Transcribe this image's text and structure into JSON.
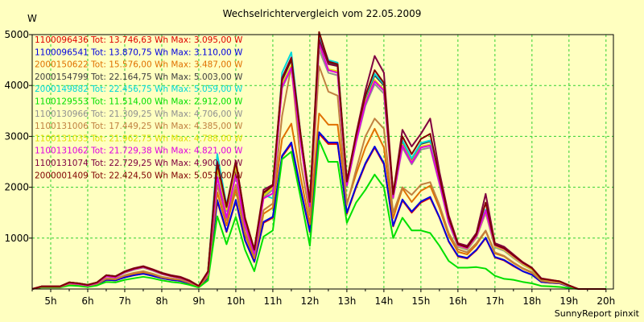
{
  "chart_data": {
    "type": "line",
    "title": "Wechselrichtervergleich vom 22.05.2009",
    "ylabel": "W",
    "credit": "SunnyReport pinxit",
    "x_labels": [
      "5h",
      "6h",
      "7h",
      "8h",
      "9h",
      "10h",
      "11h",
      "12h",
      "13h",
      "14h",
      "15h",
      "16h",
      "17h",
      "18h",
      "19h",
      "20h"
    ],
    "x_start": 4.5,
    "x_end": 20.2,
    "ylim": [
      0,
      5000
    ],
    "y_ticks": [
      1000,
      2000,
      3000,
      4000,
      5000
    ],
    "grid": true,
    "legend_position": "top-left",
    "x": [
      4.5,
      4.75,
      5.0,
      5.25,
      5.5,
      5.75,
      6.0,
      6.25,
      6.5,
      6.75,
      7.0,
      7.25,
      7.5,
      7.75,
      8.0,
      8.25,
      8.5,
      8.75,
      9.0,
      9.25,
      9.5,
      9.75,
      10.0,
      10.25,
      10.5,
      10.75,
      11.0,
      11.25,
      11.5,
      11.75,
      12.0,
      12.25,
      12.5,
      12.75,
      13.0,
      13.25,
      13.5,
      13.75,
      14.0,
      14.25,
      14.5,
      14.75,
      15.0,
      15.25,
      15.5,
      15.75,
      16.0,
      16.25,
      16.5,
      16.75,
      17.0,
      17.25,
      17.5,
      17.75,
      18.0,
      18.25,
      18.5,
      18.75,
      19.0,
      19.25,
      19.5,
      19.75,
      20.0
    ],
    "series": [
      {
        "name": "1100096436 Tot: 13.746,63 Wh Max: 3.095,00 W",
        "color": "#e00000",
        "values": [
          0,
          40,
          40,
          40,
          90,
          80,
          60,
          90,
          180,
          170,
          230,
          270,
          300,
          260,
          210,
          180,
          160,
          110,
          40,
          220,
          1720,
          1120,
          1730,
          950,
          530,
          1300,
          1400,
          2600,
          2850,
          1950,
          1120,
          3050,
          2850,
          2850,
          1480,
          2000,
          2450,
          2780,
          2450,
          1230,
          1740,
          1500,
          1700,
          1790,
          1400,
          930,
          640,
          600,
          760,
          1000,
          620,
          560,
          450,
          350,
          280,
          140,
          120,
          110,
          50,
          0,
          0,
          0,
          0
        ]
      },
      {
        "name": "1100096541 Tot: 13.870,75 Wh Max: 3.110,00 W",
        "color": "#0000e0",
        "values": [
          0,
          40,
          40,
          40,
          90,
          80,
          60,
          90,
          180,
          170,
          230,
          270,
          300,
          260,
          210,
          180,
          160,
          110,
          40,
          220,
          1750,
          1130,
          1750,
          960,
          540,
          1320,
          1420,
          2620,
          2880,
          1970,
          1130,
          3080,
          2880,
          2880,
          1500,
          2020,
          2470,
          2800,
          2470,
          1240,
          1760,
          1520,
          1720,
          1810,
          1410,
          940,
          650,
          610,
          770,
          1010,
          630,
          570,
          460,
          350,
          280,
          140,
          120,
          110,
          50,
          0,
          0,
          0,
          0
        ]
      },
      {
        "name": "2000150622 Tot: 15.576,00 Wh Max: 3.487,00 W",
        "color": "#e07000",
        "values": [
          0,
          40,
          40,
          40,
          100,
          90,
          60,
          100,
          200,
          190,
          260,
          300,
          330,
          290,
          230,
          200,
          180,
          120,
          40,
          250,
          1900,
          1250,
          1950,
          1070,
          600,
          1480,
          1600,
          2950,
          3250,
          2200,
          1270,
          3450,
          3230,
          3230,
          1680,
          2260,
          2780,
          3150,
          2780,
          1390,
          1980,
          1710,
          1930,
          2030,
          1590,
          1050,
          730,
          680,
          870,
          1140,
          700,
          640,
          510,
          400,
          320,
          160,
          130,
          120,
          60,
          0,
          0,
          0,
          0
        ]
      },
      {
        "name": "2000154799 Tot: 22.164,75 Wh Max: 5.003,00 W",
        "color": "#404040",
        "values": [
          0,
          50,
          50,
          50,
          130,
          110,
          80,
          130,
          270,
          250,
          340,
          400,
          440,
          380,
          310,
          260,
          230,
          160,
          60,
          340,
          2450,
          1600,
          2480,
          1370,
          760,
          1880,
          2030,
          4100,
          4500,
          3000,
          1700,
          4950,
          4450,
          4400,
          2100,
          3000,
          3750,
          4200,
          4000,
          1850,
          2900,
          2550,
          2850,
          2900,
          2150,
          1350,
          860,
          800,
          1050,
          1550,
          850,
          780,
          640,
          500,
          400,
          200,
          170,
          150,
          70,
          0,
          0,
          0,
          0
        ]
      },
      {
        "name": "2000149882 Tot: 22.456,75 Wh Max: 5.059,00 W",
        "color": "#00d8d8",
        "values": [
          0,
          50,
          50,
          50,
          130,
          110,
          80,
          130,
          270,
          250,
          340,
          400,
          440,
          380,
          310,
          260,
          230,
          160,
          60,
          340,
          2650,
          1650,
          2500,
          1380,
          760,
          1850,
          1780,
          4250,
          4650,
          3050,
          1730,
          5000,
          4500,
          4450,
          2120,
          3030,
          3780,
          4230,
          4030,
          1870,
          2920,
          2570,
          2870,
          2920,
          2170,
          1360,
          870,
          810,
          1060,
          1560,
          860,
          790,
          650,
          510,
          410,
          210,
          170,
          150,
          70,
          0,
          0,
          0,
          0
        ]
      },
      {
        "name": "1100129553 Tot: 11.514,00 Wh Max: 2.912,00 W",
        "color": "#00e000",
        "values": [
          0,
          30,
          30,
          30,
          70,
          60,
          40,
          70,
          140,
          130,
          180,
          210,
          240,
          210,
          170,
          140,
          120,
          80,
          30,
          170,
          1430,
          880,
          1420,
          770,
          350,
          1030,
          1150,
          2550,
          2700,
          1800,
          850,
          2920,
          2500,
          2500,
          1300,
          1700,
          1950,
          2250,
          2000,
          1000,
          1400,
          1150,
          1150,
          1100,
          850,
          550,
          420,
          420,
          430,
          400,
          260,
          200,
          180,
          140,
          110,
          60,
          50,
          40,
          20,
          0,
          0,
          0,
          0
        ]
      },
      {
        "name": "1100130966 Tot: 21.309,25 Wh Max: 4.706,00 W",
        "color": "#909090",
        "values": [
          0,
          50,
          50,
          50,
          120,
          100,
          70,
          120,
          250,
          230,
          320,
          380,
          420,
          360,
          290,
          250,
          220,
          150,
          60,
          320,
          2350,
          1530,
          2380,
          1320,
          720,
          1800,
          1950,
          3950,
          4330,
          2900,
          1640,
          4700,
          4250,
          4200,
          2020,
          2880,
          3600,
          4030,
          3840,
          1780,
          2780,
          2450,
          2740,
          2780,
          2060,
          1300,
          830,
          770,
          1010,
          1490,
          820,
          750,
          610,
          480,
          380,
          190,
          160,
          140,
          70,
          0,
          0,
          0,
          0
        ]
      },
      {
        "name": "1100131006 Tot: 17.449,25 Wh Max: 4.385,00 W",
        "color": "#c08040",
        "values": [
          0,
          40,
          40,
          40,
          100,
          90,
          60,
          100,
          210,
          200,
          270,
          320,
          350,
          300,
          240,
          210,
          190,
          130,
          50,
          270,
          2050,
          1350,
          2050,
          1130,
          650,
          1550,
          1680,
          3400,
          4380,
          2500,
          1450,
          4380,
          3880,
          3800,
          1650,
          2350,
          3000,
          3350,
          3150,
          1500,
          2000,
          1850,
          2050,
          2100,
          1650,
          1100,
          780,
          720,
          900,
          1150,
          720,
          650,
          520,
          410,
          330,
          170,
          140,
          120,
          60,
          0,
          0,
          0,
          0
        ]
      },
      {
        "name": "1100131035 Tot: 21.962,75 Wh Max: 4.788,00 W",
        "color": "#e0e000",
        "values": [
          0,
          50,
          50,
          50,
          130,
          110,
          80,
          130,
          260,
          240,
          330,
          390,
          430,
          370,
          300,
          255,
          225,
          155,
          60,
          330,
          2400,
          1560,
          2430,
          1350,
          740,
          1840,
          1990,
          4020,
          4400,
          2950,
          1670,
          4790,
          4320,
          4280,
          2060,
          2940,
          3680,
          4110,
          3920,
          1810,
          2840,
          2500,
          2800,
          2840,
          2100,
          1330,
          850,
          790,
          1030,
          1520,
          840,
          770,
          630,
          490,
          390,
          200,
          165,
          145,
          70,
          0,
          0,
          0,
          0
        ]
      },
      {
        "name": "1100131062 Tot: 21.729,38 Wh Max: 4.821,00 W",
        "color": "#e000e0",
        "values": [
          0,
          50,
          50,
          50,
          120,
          100,
          70,
          120,
          250,
          230,
          330,
          390,
          430,
          370,
          300,
          250,
          220,
          150,
          60,
          320,
          2200,
          1400,
          2250,
          1250,
          700,
          1780,
          1880,
          3980,
          4350,
          2880,
          1620,
          4820,
          4300,
          4250,
          2040,
          2900,
          3650,
          4080,
          3900,
          1800,
          2820,
          2480,
          2780,
          2820,
          2090,
          1320,
          860,
          800,
          1040,
          1540,
          860,
          790,
          650,
          510,
          410,
          210,
          170,
          150,
          70,
          0,
          0,
          0,
          0
        ]
      },
      {
        "name": "1100131074 Tot: 22.729,25 Wh Max: 4.900,00 W",
        "color": "#800040",
        "values": [
          0,
          50,
          50,
          50,
          130,
          110,
          80,
          130,
          270,
          250,
          350,
          410,
          450,
          390,
          320,
          270,
          240,
          170,
          60,
          350,
          2500,
          1620,
          2520,
          1400,
          780,
          1950,
          2050,
          4150,
          4550,
          3050,
          1720,
          4900,
          4420,
          4380,
          2120,
          3050,
          3900,
          4580,
          4250,
          1870,
          3130,
          2800,
          3050,
          3350,
          2300,
          1450,
          900,
          850,
          1100,
          1870,
          900,
          830,
          680,
          530,
          420,
          210,
          180,
          150,
          70,
          0,
          0,
          0,
          0
        ]
      },
      {
        "name": "2000001409 Tot: 22.424,50 Wh Max: 5.051,00 W",
        "color": "#800000",
        "values": [
          0,
          50,
          50,
          50,
          130,
          110,
          80,
          130,
          270,
          250,
          340,
          400,
          440,
          380,
          310,
          260,
          230,
          160,
          60,
          340,
          2480,
          1610,
          2500,
          1380,
          770,
          1900,
          2030,
          4120,
          4520,
          3030,
          1710,
          5050,
          4470,
          4420,
          2110,
          3020,
          3800,
          4300,
          4050,
          1860,
          3000,
          2650,
          2950,
          3050,
          2200,
          1400,
          880,
          820,
          1070,
          1700,
          870,
          800,
          660,
          520,
          410,
          200,
          175,
          150,
          70,
          0,
          0,
          0,
          0
        ]
      }
    ]
  }
}
